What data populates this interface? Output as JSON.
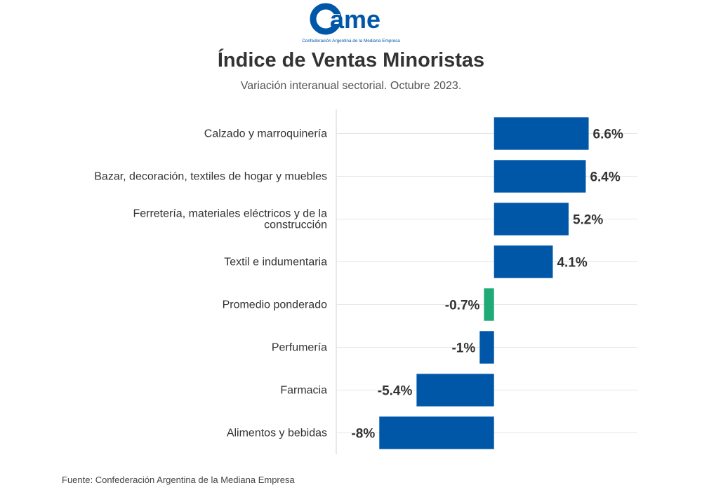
{
  "logo": {
    "mark": "ame",
    "caption": "Confederación Argentina de la Mediana Empresa",
    "color": "#0057a8"
  },
  "header": {
    "title": "Índice de Ventas Minoristas",
    "subtitle": "Variación interanual sectorial. Octubre 2023."
  },
  "footer": {
    "source": "Fuente: Confederación Argentina de la Mediana Empresa"
  },
  "colors": {
    "bar": "#0057a8",
    "highlight": "#1faa78",
    "grid": "#e6e6e6",
    "axis": "#d0d0d0"
  },
  "chart_data": {
    "type": "bar",
    "orientation": "horizontal",
    "title": "Índice de Ventas Minoristas",
    "subtitle": "Variación interanual sectorial. Octubre 2023.",
    "categories": [
      "Calzado y marroquinería",
      "Bazar, decoración, textiles de hogar y muebles",
      "Ferretería, materiales eléctricos y de la construcción",
      "Textil e indumentaria",
      "Promedio ponderado",
      "Perfumería",
      "Farmacia",
      "Alimentos y bebidas"
    ],
    "category_lines": [
      [
        "Calzado y marroquinería"
      ],
      [
        "Bazar, decoración, textiles de hogar y muebles"
      ],
      [
        "Ferretería, materiales eléctricos y de la",
        "construcción"
      ],
      [
        "Textil e indumentaria"
      ],
      [
        "Promedio ponderado"
      ],
      [
        "Perfumería"
      ],
      [
        "Farmacia"
      ],
      [
        "Alimentos y bebidas"
      ]
    ],
    "values": [
      6.6,
      6.4,
      5.2,
      4.1,
      -0.7,
      -1,
      -5.4,
      -8
    ],
    "value_labels": [
      "6.6%",
      "6.4%",
      "5.2%",
      "4.1%",
      "-0.7%",
      "-1%",
      "-5.4%",
      "-8%"
    ],
    "highlight": [
      "Promedio ponderado"
    ],
    "xlim": [
      -11,
      10
    ],
    "xlabel": "",
    "ylabel": "",
    "grid": true
  }
}
